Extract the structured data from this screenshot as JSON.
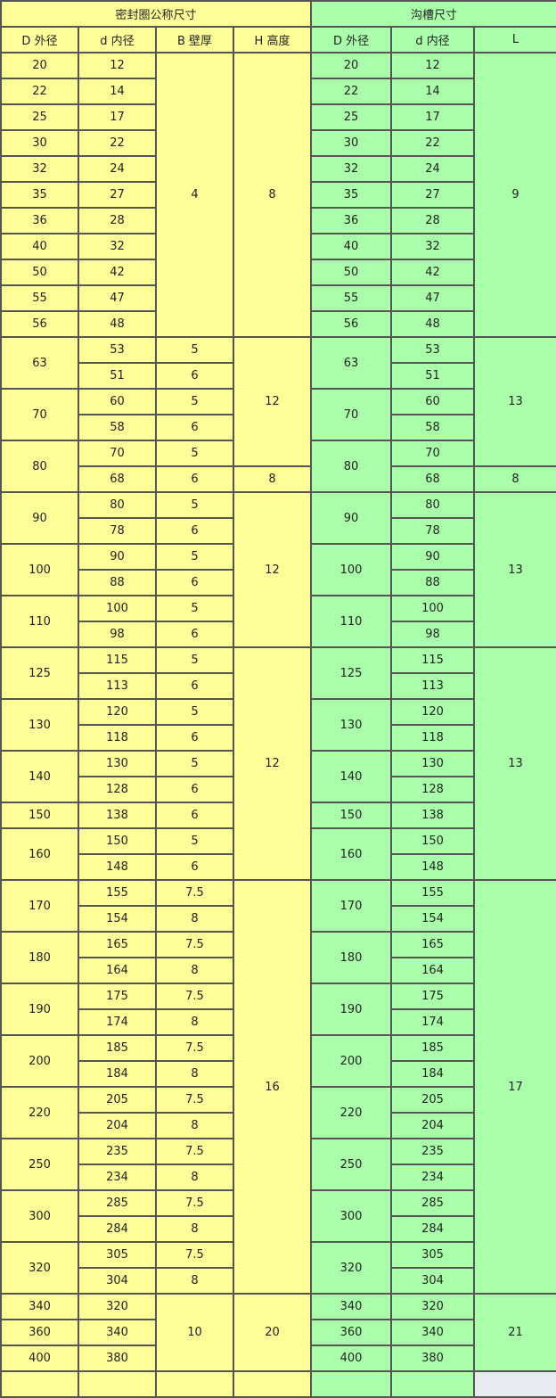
{
  "header": {
    "seal_title": "密封圈公称尺寸",
    "groove_title": "沟槽尺寸",
    "seal_cols": [
      "D 外径",
      "d 内径",
      "B 壁厚",
      "H 高度"
    ],
    "groove_cols": [
      "D 外径",
      "d 内径",
      "L"
    ]
  },
  "colors": {
    "seal": "#ffff99",
    "groove": "#aaffaa",
    "empty": "#e8ebef",
    "border": "#555555"
  },
  "rows": [
    {
      "seal": [
        {
          "v": "20"
        },
        {
          "v": "12"
        },
        {
          "v": "4",
          "rs": 11
        },
        {
          "v": "8",
          "rs": 11
        }
      ],
      "groove": [
        {
          "v": "20"
        },
        {
          "v": "12"
        },
        {
          "v": "9",
          "rs": 11
        }
      ]
    },
    {
      "seal": [
        {
          "v": "22"
        },
        {
          "v": "14"
        }
      ],
      "groove": [
        {
          "v": "22"
        },
        {
          "v": "14"
        }
      ]
    },
    {
      "seal": [
        {
          "v": "25"
        },
        {
          "v": "17"
        }
      ],
      "groove": [
        {
          "v": "25"
        },
        {
          "v": "17"
        }
      ]
    },
    {
      "seal": [
        {
          "v": "30"
        },
        {
          "v": "22"
        }
      ],
      "groove": [
        {
          "v": "30"
        },
        {
          "v": "22"
        }
      ]
    },
    {
      "seal": [
        {
          "v": "32"
        },
        {
          "v": "24"
        }
      ],
      "groove": [
        {
          "v": "32"
        },
        {
          "v": "24"
        }
      ]
    },
    {
      "seal": [
        {
          "v": "35"
        },
        {
          "v": "27"
        }
      ],
      "groove": [
        {
          "v": "35"
        },
        {
          "v": "27"
        }
      ]
    },
    {
      "seal": [
        {
          "v": "36"
        },
        {
          "v": "28"
        }
      ],
      "groove": [
        {
          "v": "36"
        },
        {
          "v": "28"
        }
      ]
    },
    {
      "seal": [
        {
          "v": "40"
        },
        {
          "v": "32"
        }
      ],
      "groove": [
        {
          "v": "40"
        },
        {
          "v": "32"
        }
      ]
    },
    {
      "seal": [
        {
          "v": "50"
        },
        {
          "v": "42"
        }
      ],
      "groove": [
        {
          "v": "50"
        },
        {
          "v": "42"
        }
      ]
    },
    {
      "seal": [
        {
          "v": "55"
        },
        {
          "v": "47"
        }
      ],
      "groove": [
        {
          "v": "55"
        },
        {
          "v": "47"
        }
      ]
    },
    {
      "seal": [
        {
          "v": "56"
        },
        {
          "v": "48"
        }
      ],
      "groove": [
        {
          "v": "56"
        },
        {
          "v": "48"
        }
      ]
    },
    {
      "seal": [
        {
          "v": "63",
          "rs": 2
        },
        {
          "v": "53"
        },
        {
          "v": "5"
        },
        {
          "v": "12",
          "rs": 5
        }
      ],
      "groove": [
        {
          "v": "63",
          "rs": 2
        },
        {
          "v": "53"
        },
        {
          "v": "13",
          "rs": 5
        }
      ]
    },
    {
      "seal": [
        {
          "v": "51"
        },
        {
          "v": "6"
        }
      ],
      "groove": [
        {
          "v": "51"
        }
      ]
    },
    {
      "seal": [
        {
          "v": "70",
          "rs": 2
        },
        {
          "v": "60"
        },
        {
          "v": "5"
        }
      ],
      "groove": [
        {
          "v": "70",
          "rs": 2
        },
        {
          "v": "60"
        }
      ]
    },
    {
      "seal": [
        {
          "v": "58"
        },
        {
          "v": "6"
        }
      ],
      "groove": [
        {
          "v": "58"
        }
      ]
    },
    {
      "seal": [
        {
          "v": "80",
          "rs": 2
        },
        {
          "v": "70"
        },
        {
          "v": "5"
        }
      ],
      "groove": [
        {
          "v": "80",
          "rs": 2
        },
        {
          "v": "70"
        }
      ]
    },
    {
      "seal": [
        {
          "v": "68"
        },
        {
          "v": "6"
        },
        {
          "v": "8"
        }
      ],
      "groove": [
        {
          "v": "68"
        },
        {
          "v": "8"
        }
      ]
    },
    {
      "seal": [
        {
          "v": "90",
          "rs": 2
        },
        {
          "v": "80"
        },
        {
          "v": "5"
        },
        {
          "v": "12",
          "rs": 6
        }
      ],
      "groove": [
        {
          "v": "90",
          "rs": 2
        },
        {
          "v": "80"
        },
        {
          "v": "13",
          "rs": 6
        }
      ]
    },
    {
      "seal": [
        {
          "v": "78"
        },
        {
          "v": "6"
        }
      ],
      "groove": [
        {
          "v": "78"
        }
      ]
    },
    {
      "seal": [
        {
          "v": "100",
          "rs": 2
        },
        {
          "v": "90"
        },
        {
          "v": "5"
        }
      ],
      "groove": [
        {
          "v": "100",
          "rs": 2
        },
        {
          "v": "90"
        }
      ]
    },
    {
      "seal": [
        {
          "v": "88"
        },
        {
          "v": "6"
        }
      ],
      "groove": [
        {
          "v": "88"
        }
      ]
    },
    {
      "seal": [
        {
          "v": "110",
          "rs": 2
        },
        {
          "v": "100"
        },
        {
          "v": "5"
        }
      ],
      "groove": [
        {
          "v": "110",
          "rs": 2
        },
        {
          "v": "100"
        }
      ]
    },
    {
      "seal": [
        {
          "v": "98"
        },
        {
          "v": "6"
        }
      ],
      "groove": [
        {
          "v": "98"
        }
      ]
    },
    {
      "seal": [
        {
          "v": "125",
          "rs": 2
        },
        {
          "v": "115"
        },
        {
          "v": "5"
        },
        {
          "v": "12",
          "rs": 9
        }
      ],
      "groove": [
        {
          "v": "125",
          "rs": 2
        },
        {
          "v": "115"
        },
        {
          "v": "13",
          "rs": 9
        }
      ]
    },
    {
      "seal": [
        {
          "v": "113"
        },
        {
          "v": "6"
        }
      ],
      "groove": [
        {
          "v": "113"
        }
      ]
    },
    {
      "seal": [
        {
          "v": "130",
          "rs": 2
        },
        {
          "v": "120"
        },
        {
          "v": "5"
        }
      ],
      "groove": [
        {
          "v": "130",
          "rs": 2
        },
        {
          "v": "120"
        }
      ]
    },
    {
      "seal": [
        {
          "v": "118"
        },
        {
          "v": "6"
        }
      ],
      "groove": [
        {
          "v": "118"
        }
      ]
    },
    {
      "seal": [
        {
          "v": "140",
          "rs": 2
        },
        {
          "v": "130"
        },
        {
          "v": "5"
        }
      ],
      "groove": [
        {
          "v": "140",
          "rs": 2
        },
        {
          "v": "130"
        }
      ]
    },
    {
      "seal": [
        {
          "v": "128"
        },
        {
          "v": "6"
        }
      ],
      "groove": [
        {
          "v": "128"
        }
      ]
    },
    {
      "seal": [
        {
          "v": "150"
        },
        {
          "v": "138"
        },
        {
          "v": "6"
        }
      ],
      "groove": [
        {
          "v": "150"
        },
        {
          "v": "138"
        }
      ]
    },
    {
      "seal": [
        {
          "v": "160",
          "rs": 2
        },
        {
          "v": "150"
        },
        {
          "v": "5"
        }
      ],
      "groove": [
        {
          "v": "160",
          "rs": 2
        },
        {
          "v": "150"
        }
      ]
    },
    {
      "seal": [
        {
          "v": "148"
        },
        {
          "v": "6"
        }
      ],
      "groove": [
        {
          "v": "148"
        }
      ]
    },
    {
      "seal": [
        {
          "v": "170",
          "rs": 2
        },
        {
          "v": "155"
        },
        {
          "v": "7.5"
        },
        {
          "v": "16",
          "rs": 16
        }
      ],
      "groove": [
        {
          "v": "170",
          "rs": 2
        },
        {
          "v": "155"
        },
        {
          "v": "17",
          "rs": 16
        }
      ]
    },
    {
      "seal": [
        {
          "v": "154"
        },
        {
          "v": "8"
        }
      ],
      "groove": [
        {
          "v": "154"
        }
      ]
    },
    {
      "seal": [
        {
          "v": "180",
          "rs": 2
        },
        {
          "v": "165"
        },
        {
          "v": "7.5"
        }
      ],
      "groove": [
        {
          "v": "180",
          "rs": 2
        },
        {
          "v": "165"
        }
      ]
    },
    {
      "seal": [
        {
          "v": "164"
        },
        {
          "v": "8"
        }
      ],
      "groove": [
        {
          "v": "164"
        }
      ]
    },
    {
      "seal": [
        {
          "v": "190",
          "rs": 2
        },
        {
          "v": "175"
        },
        {
          "v": "7.5"
        }
      ],
      "groove": [
        {
          "v": "190",
          "rs": 2
        },
        {
          "v": "175"
        }
      ]
    },
    {
      "seal": [
        {
          "v": "174"
        },
        {
          "v": "8"
        }
      ],
      "groove": [
        {
          "v": "174"
        }
      ]
    },
    {
      "seal": [
        {
          "v": "200",
          "rs": 2
        },
        {
          "v": "185"
        },
        {
          "v": "7.5"
        }
      ],
      "groove": [
        {
          "v": "200",
          "rs": 2
        },
        {
          "v": "185"
        }
      ]
    },
    {
      "seal": [
        {
          "v": "184"
        },
        {
          "v": "8"
        }
      ],
      "groove": [
        {
          "v": "184"
        }
      ]
    },
    {
      "seal": [
        {
          "v": "220",
          "rs": 2
        },
        {
          "v": "205"
        },
        {
          "v": "7.5"
        }
      ],
      "groove": [
        {
          "v": "220",
          "rs": 2
        },
        {
          "v": "205"
        }
      ]
    },
    {
      "seal": [
        {
          "v": "204"
        },
        {
          "v": "8"
        }
      ],
      "groove": [
        {
          "v": "204"
        }
      ]
    },
    {
      "seal": [
        {
          "v": "250",
          "rs": 2
        },
        {
          "v": "235"
        },
        {
          "v": "7.5"
        }
      ],
      "groove": [
        {
          "v": "250",
          "rs": 2
        },
        {
          "v": "235"
        }
      ]
    },
    {
      "seal": [
        {
          "v": "234"
        },
        {
          "v": "8"
        }
      ],
      "groove": [
        {
          "v": "234"
        }
      ]
    },
    {
      "seal": [
        {
          "v": "300",
          "rs": 2
        },
        {
          "v": "285"
        },
        {
          "v": "7.5"
        }
      ],
      "groove": [
        {
          "v": "300",
          "rs": 2
        },
        {
          "v": "285"
        }
      ]
    },
    {
      "seal": [
        {
          "v": "284"
        },
        {
          "v": "8"
        }
      ],
      "groove": [
        {
          "v": "284"
        }
      ]
    },
    {
      "seal": [
        {
          "v": "320",
          "rs": 2
        },
        {
          "v": "305"
        },
        {
          "v": "7.5"
        }
      ],
      "groove": [
        {
          "v": "320",
          "rs": 2
        },
        {
          "v": "305"
        }
      ]
    },
    {
      "seal": [
        {
          "v": "304"
        },
        {
          "v": "8"
        }
      ],
      "groove": [
        {
          "v": "304"
        }
      ]
    },
    {
      "seal": [
        {
          "v": "340"
        },
        {
          "v": "320"
        },
        {
          "v": "10",
          "rs": 3
        },
        {
          "v": "20",
          "rs": 3
        }
      ],
      "groove": [
        {
          "v": "340"
        },
        {
          "v": "320"
        },
        {
          "v": "21",
          "rs": 3
        }
      ]
    },
    {
      "seal": [
        {
          "v": "360"
        },
        {
          "v": "340"
        }
      ],
      "groove": [
        {
          "v": "360"
        },
        {
          "v": "340"
        }
      ]
    },
    {
      "seal": [
        {
          "v": "400"
        },
        {
          "v": "380"
        }
      ],
      "groove": [
        {
          "v": "400"
        },
        {
          "v": "380"
        }
      ]
    },
    {
      "seal": [
        {
          "v": ""
        },
        {
          "v": ""
        },
        {
          "v": ""
        },
        {
          "v": ""
        }
      ],
      "groove": [
        {
          "v": ""
        },
        {
          "v": ""
        },
        {
          "v": "",
          "empty": true
        }
      ]
    }
  ]
}
